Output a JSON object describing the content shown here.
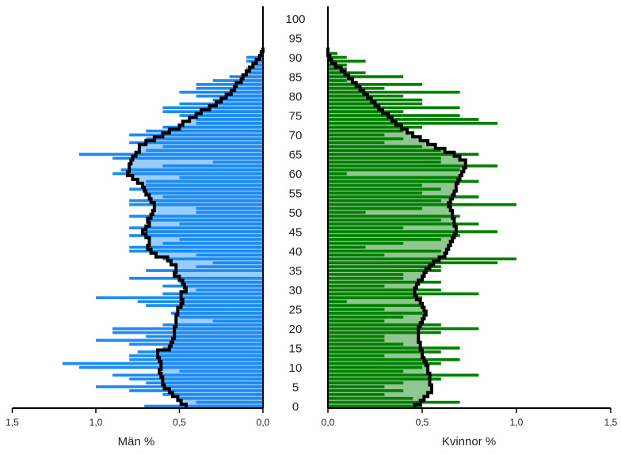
{
  "chart_data": {
    "type": "population-pyramid",
    "title": "",
    "age_range": [
      0,
      100
    ],
    "age_ticks": [
      "0",
      "5",
      "10",
      "15",
      "20",
      "25",
      "30",
      "35",
      "40",
      "45",
      "50",
      "55",
      "60",
      "65",
      "70",
      "75",
      "80",
      "85",
      "90",
      "95",
      "100"
    ],
    "left_panel": {
      "xlabel": "Män %",
      "xlim": [
        0,
        1.5
      ],
      "tick_values": [
        1.5,
        1.0,
        0.5,
        0.0
      ],
      "tick_labels": [
        "1,5",
        "1,0",
        "0,5",
        "0,0"
      ]
    },
    "right_panel": {
      "xlabel": "Kvinnor %",
      "xlim": [
        0,
        1.5
      ],
      "tick_values": [
        0.0,
        0.5,
        1.0,
        1.5
      ],
      "tick_labels": [
        "0,0",
        "0,5",
        "1,0",
        "1,5"
      ]
    },
    "series": [
      {
        "name": "Män",
        "side": "left",
        "fill_color": "#99ccff",
        "bar_color": "#1c8bf2",
        "line_color": "#000000",
        "smooth_values": [
          0.46,
          0.49,
          0.51,
          0.54,
          0.56,
          0.59,
          0.6,
          0.6,
          0.61,
          0.62,
          0.61,
          0.61,
          0.62,
          0.63,
          0.63,
          0.56,
          0.55,
          0.54,
          0.53,
          0.53,
          0.53,
          0.52,
          0.52,
          0.52,
          0.51,
          0.51,
          0.49,
          0.48,
          0.49,
          0.49,
          0.46,
          0.47,
          0.48,
          0.5,
          0.53,
          0.52,
          0.52,
          0.55,
          0.57,
          0.64,
          0.67,
          0.69,
          0.68,
          0.68,
          0.7,
          0.72,
          0.7,
          0.68,
          0.69,
          0.67,
          0.66,
          0.65,
          0.65,
          0.67,
          0.68,
          0.7,
          0.71,
          0.72,
          0.75,
          0.78,
          0.81,
          0.8,
          0.8,
          0.79,
          0.78,
          0.76,
          0.74,
          0.74,
          0.7,
          0.65,
          0.6,
          0.56,
          0.5,
          0.48,
          0.44,
          0.4,
          0.37,
          0.32,
          0.28,
          0.25,
          0.22,
          0.19,
          0.17,
          0.16,
          0.13,
          0.12,
          0.1,
          0.08,
          0.06,
          0.04,
          0.02,
          0.01,
          0.0
        ],
        "bar_values": [
          0.71,
          0.4,
          0.5,
          0.6,
          0.8,
          1.0,
          0.7,
          0.8,
          0.9,
          0.5,
          1.1,
          1.2,
          0.8,
          0.8,
          0.75,
          0.6,
          0.8,
          1.0,
          0.7,
          0.9,
          0.9,
          0.6,
          0.3,
          0.5,
          0.55,
          0.5,
          0.7,
          0.75,
          1.0,
          0.6,
          0.4,
          0.6,
          0.5,
          0.8,
          0.0,
          0.7,
          0.4,
          0.3,
          0.6,
          0.4,
          0.8,
          0.8,
          0.6,
          0.5,
          0.8,
          0.7,
          0.8,
          0.5,
          0.7,
          0.8,
          0.4,
          0.4,
          0.8,
          0.8,
          0.6,
          0.7,
          0.8,
          0.7,
          0.7,
          0.5,
          0.9,
          0.85,
          0.6,
          0.3,
          0.9,
          1.1,
          0.7,
          0.6,
          0.8,
          0.7,
          0.8,
          0.7,
          0.6,
          0.4,
          0.4,
          0.5,
          0.6,
          0.6,
          0.5,
          0.3,
          0.4,
          0.5,
          0.4,
          0.4,
          0.3,
          0.2,
          0.1,
          0.1,
          0.05,
          0.1,
          0.1,
          0.02,
          0.0
        ]
      },
      {
        "name": "Kvinnor",
        "side": "right",
        "fill_color": "#90c690",
        "bar_color": "#008000",
        "line_color": "#000000",
        "smooth_values": [
          0.46,
          0.49,
          0.51,
          0.53,
          0.55,
          0.55,
          0.54,
          0.54,
          0.54,
          0.53,
          0.53,
          0.52,
          0.51,
          0.5,
          0.5,
          0.49,
          0.49,
          0.48,
          0.48,
          0.48,
          0.48,
          0.49,
          0.5,
          0.51,
          0.52,
          0.51,
          0.5,
          0.49,
          0.47,
          0.46,
          0.46,
          0.47,
          0.48,
          0.5,
          0.51,
          0.52,
          0.54,
          0.56,
          0.59,
          0.62,
          0.63,
          0.64,
          0.65,
          0.66,
          0.67,
          0.68,
          0.68,
          0.67,
          0.67,
          0.66,
          0.66,
          0.65,
          0.64,
          0.65,
          0.66,
          0.67,
          0.68,
          0.68,
          0.69,
          0.7,
          0.71,
          0.72,
          0.73,
          0.73,
          0.7,
          0.67,
          0.62,
          0.57,
          0.53,
          0.49,
          0.45,
          0.42,
          0.39,
          0.36,
          0.34,
          0.32,
          0.29,
          0.27,
          0.25,
          0.23,
          0.21,
          0.19,
          0.17,
          0.15,
          0.13,
          0.11,
          0.09,
          0.07,
          0.04,
          0.02,
          0.01,
          0.0,
          0.0
        ],
        "bar_values": [
          0.5,
          0.7,
          0.45,
          0.3,
          0.4,
          0.3,
          0.4,
          0.6,
          0.8,
          0.4,
          0.5,
          0.6,
          0.7,
          0.3,
          0.6,
          0.7,
          0.4,
          0.3,
          0.3,
          0.6,
          0.8,
          0.6,
          0.3,
          0.4,
          0.5,
          0.3,
          0.5,
          0.1,
          0.5,
          0.8,
          0.6,
          0.3,
          0.6,
          0.4,
          0.4,
          0.6,
          0.6,
          0.9,
          1.0,
          0.3,
          0.6,
          0.2,
          0.4,
          0.6,
          0.7,
          0.9,
          0.4,
          0.8,
          0.6,
          0.7,
          0.2,
          0.5,
          1.0,
          0.6,
          0.8,
          0.5,
          0.6,
          0.5,
          0.8,
          0.7,
          0.1,
          0.7,
          0.9,
          0.6,
          0.6,
          0.8,
          0.6,
          0.5,
          0.3,
          0.4,
          0.3,
          0.4,
          0.5,
          0.9,
          0.8,
          0.7,
          0.4,
          0.7,
          0.5,
          0.5,
          0.4,
          0.7,
          0.3,
          0.5,
          0.1,
          0.4,
          0.2,
          0.1,
          0.1,
          0.2,
          0.1,
          0.05,
          0.0
        ]
      }
    ]
  }
}
